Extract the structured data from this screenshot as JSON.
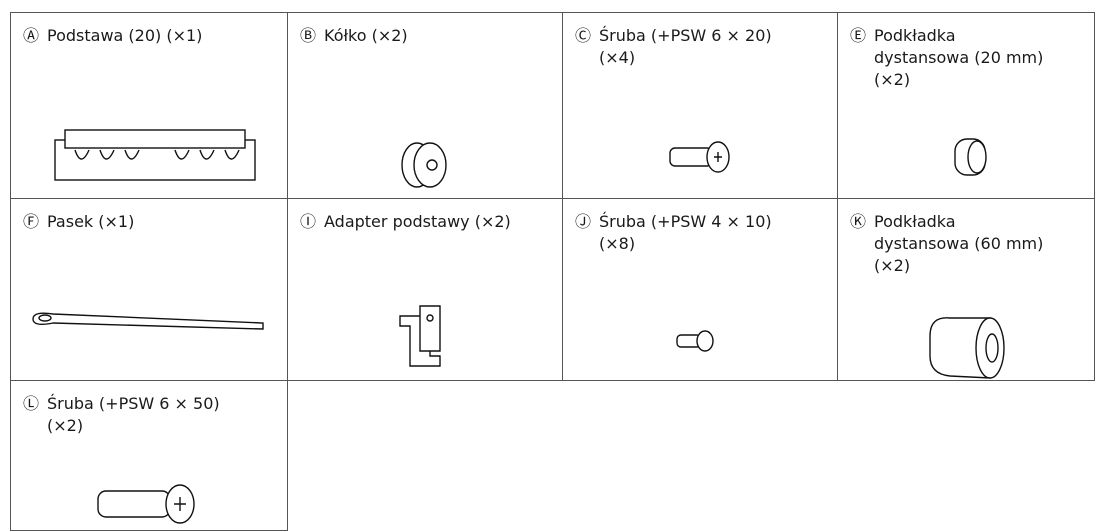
{
  "items": [
    {
      "marker": "Ⓐ",
      "lines": [
        "Podstawa (20) (×1)"
      ]
    },
    {
      "marker": "Ⓑ",
      "lines": [
        "Kółko (×2)"
      ]
    },
    {
      "marker": "Ⓒ",
      "lines": [
        "Śruba (+PSW 6 × 20)",
        "(×4)"
      ]
    },
    {
      "marker": "Ⓔ",
      "lines": [
        "Podkładka",
        "dystansowa (20 mm)",
        "(×2)"
      ]
    },
    {
      "marker": "Ⓕ",
      "lines": [
        "Pasek (×1)"
      ]
    },
    {
      "marker": "Ⓘ",
      "lines": [
        "Adapter podstawy (×2)"
      ]
    },
    {
      "marker": "Ⓙ",
      "lines": [
        "Śruba (+PSW 4 × 10)",
        "(×8)"
      ]
    },
    {
      "marker": "Ⓚ",
      "lines": [
        "Podkładka",
        "dystansowa (60 mm)",
        "(×2)"
      ]
    },
    {
      "marker": "Ⓛ",
      "lines": [
        "Śruba (+PSW 6 × 50)",
        "(×2)"
      ]
    }
  ]
}
